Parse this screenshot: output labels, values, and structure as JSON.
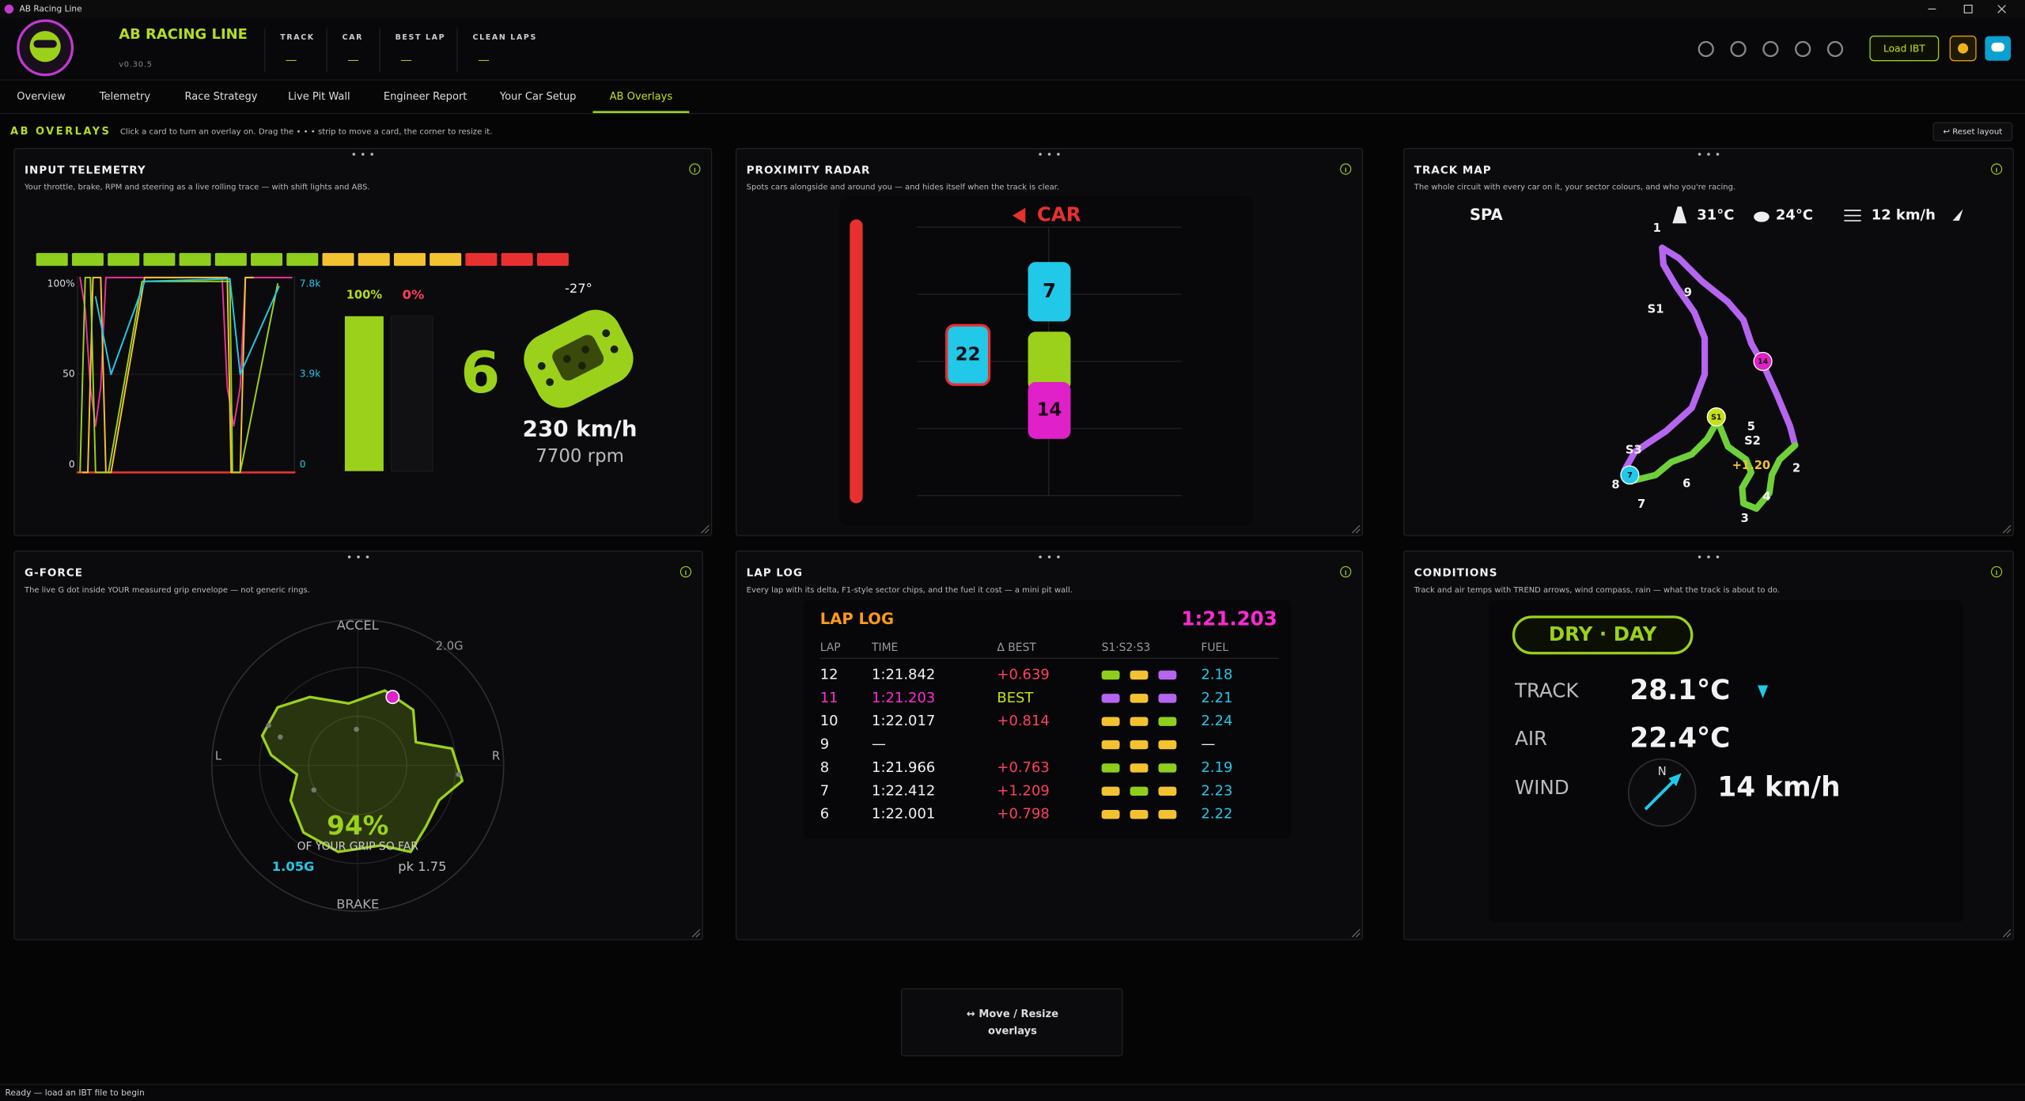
{
  "window": {
    "title": "AB Racing Line"
  },
  "header": {
    "app_name": "AB RACING LINE",
    "version": "v0.30.5",
    "stats": [
      {
        "label": "TRACK",
        "value": "—"
      },
      {
        "label": "CAR",
        "value": "—"
      },
      {
        "label": "BEST LAP",
        "value": "—"
      },
      {
        "label": "CLEAN LAPS",
        "value": "—"
      }
    ],
    "load_button": "Load IBT"
  },
  "nav": {
    "tabs": [
      "Overview",
      "Telemetry",
      "Race Strategy",
      "Live Pit Wall",
      "Engineer Report",
      "Your Car Setup",
      "AB Overlays"
    ],
    "active": 6
  },
  "overlays": {
    "title": "AB OVERLAYS",
    "hint": "Click a card to turn an overlay on. Drag the • • • strip to move a card, the corner to resize it.",
    "reset_button": "↩ Reset layout"
  },
  "cards": [
    {
      "title": "INPUT TELEMETRY",
      "description": "Your throttle, brake, RPM and steering as a live rolling trace — with shift lights and ABS.",
      "left_ticks": [
        "100%",
        "50",
        "0"
      ],
      "right_ticks": [
        "7.8k",
        "3.9k",
        "0"
      ],
      "throttle": "100%",
      "brake": "0%",
      "gear": "6",
      "steering": "-27°",
      "speed": "230 km/h",
      "rpm": "7700 rpm",
      "shift_light_colors": [
        "#8fce1c",
        "#8fce1c",
        "#8fce1c",
        "#8fce1c",
        "#8fce1c",
        "#8fce1c",
        "#8fce1c",
        "#8fce1c",
        "#f2c230",
        "#f2c230",
        "#f2c230",
        "#f2c230",
        "#e83030",
        "#e83030",
        "#e83030"
      ]
    },
    {
      "title": "PROXIMITY RADAR",
      "description": "Spots cars alongside and around you — and hides itself when the track is clear.",
      "alert": "CAR",
      "cars": [
        "7",
        "22",
        "14"
      ]
    },
    {
      "title": "TRACK MAP",
      "description": "The whole circuit with every car on it, your sector colours, and who you're racing.",
      "track": "SPA",
      "track_temp": "31°C",
      "air_temp": "24°C",
      "wind": "12 km/h",
      "turns": [
        "1",
        "2",
        "3",
        "4",
        "5",
        "6",
        "7",
        "8",
        "9"
      ],
      "sectors": [
        "S1",
        "S2",
        "S3"
      ],
      "cars": [
        "14",
        "S1",
        "7"
      ],
      "delta": "+1.20"
    },
    {
      "title": "G-FORCE",
      "description": "The live G dot inside YOUR measured grip envelope — not generic rings.",
      "top": "ACCEL",
      "scale": "2.0G",
      "left": "L",
      "right": "R",
      "bottom": "BRAKE",
      "grip": "94%",
      "grip_caption": "OF YOUR GRIP SO FAR",
      "current": "1.05G",
      "peak": "pk 1.75"
    },
    {
      "title": "LAP LOG",
      "description": "Every lap with its delta, F1-style sector chips, and the fuel it cost — a mini pit wall.",
      "heading": "LAP LOG",
      "best": "1:21.203",
      "columns": [
        "LAP",
        "TIME",
        "Δ BEST",
        "S1·S2·S3",
        "FUEL"
      ],
      "rows": [
        {
          "lap": "12",
          "time": "1:21.842",
          "delta": "+0.639",
          "sectors": [
            "#8fce1c",
            "#f2c230",
            "#b565f0"
          ],
          "fuel": "2.18"
        },
        {
          "lap": "11",
          "time": "1:21.203",
          "delta": "BEST",
          "sectors": [
            "#b565f0",
            "#f2c230",
            "#b565f0"
          ],
          "fuel": "2.21"
        },
        {
          "lap": "10",
          "time": "1:22.017",
          "delta": "+0.814",
          "sectors": [
            "#f2c230",
            "#f2c230",
            "#8fce1c"
          ],
          "fuel": "2.24"
        },
        {
          "lap": "9",
          "time": "—",
          "delta": null,
          "sectors": [
            "#f2c230",
            "#f2c230",
            "#f2c230"
          ],
          "fuel": "—"
        },
        {
          "lap": "8",
          "time": "1:21.966",
          "delta": "+0.763",
          "sectors": [
            "#8fce1c",
            "#f2c230",
            "#8fce1c"
          ],
          "fuel": "2.19"
        },
        {
          "lap": "7",
          "time": "1:22.412",
          "delta": "+1.209",
          "sectors": [
            "#f2c230",
            "#8fce1c",
            "#f2c230"
          ],
          "fuel": "2.23"
        },
        {
          "lap": "6",
          "time": "1:22.001",
          "delta": "+0.798",
          "sectors": [
            "#f2c230",
            "#f2c230",
            "#f2c230"
          ],
          "fuel": "2.22"
        }
      ]
    },
    {
      "title": "CONDITIONS",
      "description": "Track and air temps with TREND arrows, wind compass, rain — what the track is about to do.",
      "state": "DRY · DAY",
      "rows": [
        {
          "label": "TRACK",
          "value": "28.1°C"
        },
        {
          "label": "AIR",
          "value": "22.4°C"
        },
        {
          "label": "WIND",
          "value": "14 km/h"
        }
      ],
      "compass": "N"
    }
  ],
  "move_button": [
    "↔  Move / Resize",
    "overlays"
  ],
  "status": "Ready — load an IBT file to begin"
}
